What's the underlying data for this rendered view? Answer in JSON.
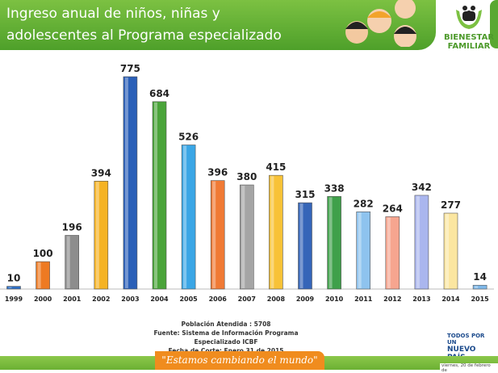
{
  "header": {
    "title_line1": "Ingreso anual de niños, niñas y",
    "title_line2": "adolescentes al Programa especializado",
    "logo_line1": "BIENESTAR",
    "logo_line2": "FAMILIAR"
  },
  "chart_data": {
    "type": "bar",
    "categories": [
      "1999",
      "2000",
      "2001",
      "2002",
      "2003",
      "2004",
      "2005",
      "2006",
      "2007",
      "2008",
      "2009",
      "2010",
      "2011",
      "2012",
      "2013",
      "2014",
      "2015"
    ],
    "values": [
      10,
      100,
      196,
      394,
      775,
      684,
      526,
      396,
      380,
      415,
      315,
      338,
      282,
      264,
      342,
      277,
      14
    ],
    "colors": [
      "#2f6fc4",
      "#ee7a22",
      "#8d8d8d",
      "#f5b324",
      "#2a5fb8",
      "#4aa43a",
      "#3aa6e6",
      "#f07a35",
      "#a5a5a5",
      "#f8c237",
      "#3565b8",
      "#3fa04a",
      "#8ec3ee",
      "#f6a58f",
      "#aab6ee",
      "#fbe6a0",
      "#7fb9ea"
    ],
    "ylim": [
      0,
      800
    ],
    "grid": false
  },
  "notes": {
    "poblacion": "Población Atendida : 5708",
    "fuente": "Fuente: Sistema de Información Programa Especializado ICBF",
    "fecha": "Fecha de Corte: Enero 31 de 2015"
  },
  "footer": {
    "slogan": "\"Estamos cambiando el mundo\"",
    "gov_line1": "TODOS POR UN",
    "gov_line2": "NUEVO PAÍS",
    "date": "viernes, 20 de febrero de"
  }
}
